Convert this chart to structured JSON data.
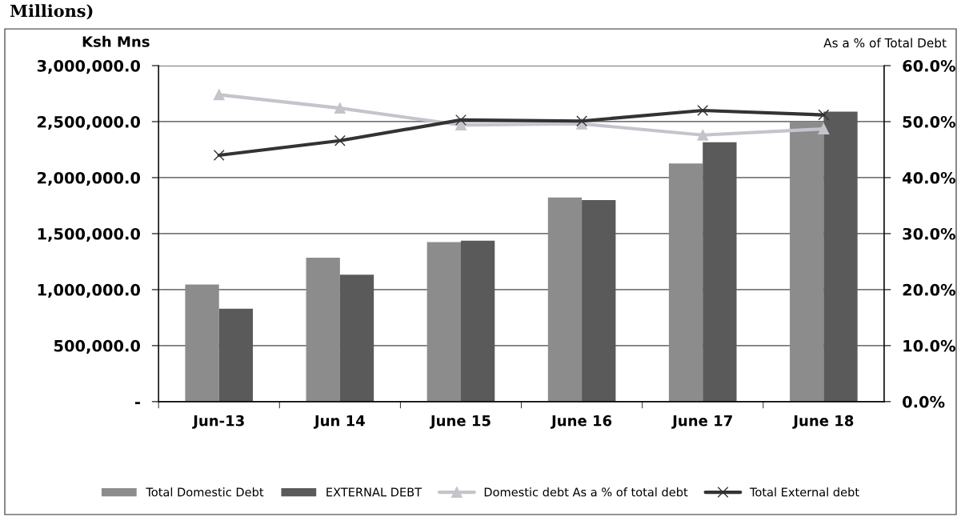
{
  "chart_data": {
    "type": "bar",
    "title": "Millions)",
    "ylabel": "Ksh Mns",
    "y2label": "As a % of Total Debt",
    "categories": [
      "Jun-13",
      "Jun 14",
      "June 15",
      "June 16",
      "June 17",
      "June 18"
    ],
    "series": [
      {
        "name": "Total Domestic Debt",
        "color": "#8c8c8c",
        "values": [
          1045000,
          1285000,
          1424000,
          1822000,
          2127000,
          2500000
        ]
      },
      {
        "name": "EXTERNAL DEBT",
        "color": "#5a5a5a",
        "values": [
          830000,
          1133000,
          1437000,
          1800000,
          2316000,
          2590000
        ]
      },
      {
        "name": "Domestic debt As a % of total debt",
        "type": "line",
        "axis": "y2",
        "marker": "triangle",
        "color": "#c4c4cc",
        "values": [
          54.8,
          52.4,
          49.4,
          49.6,
          47.6,
          48.7
        ]
      },
      {
        "name": "Total External debt",
        "type": "line",
        "axis": "y2",
        "marker": "cross",
        "color": "#333333",
        "values": [
          44.0,
          46.6,
          50.3,
          50.1,
          52.0,
          51.2
        ]
      }
    ],
    "ylim": [
      0,
      3000000
    ],
    "yticks": [
      {
        "value": 0,
        "label": "-"
      },
      {
        "value": 500000,
        "label": "500,000.0"
      },
      {
        "value": 1000000,
        "label": "1,000,000.0"
      },
      {
        "value": 1500000,
        "label": "1,500,000.0"
      },
      {
        "value": 2000000,
        "label": "2,000,000.0"
      },
      {
        "value": 2500000,
        "label": "2,500,000.0"
      },
      {
        "value": 3000000,
        "label": "3,000,000.0"
      }
    ],
    "y2lim": [
      0,
      60
    ],
    "y2ticks": [
      {
        "value": 0,
        "label": "0.0%"
      },
      {
        "value": 10,
        "label": "10.0%"
      },
      {
        "value": 20,
        "label": "20.0%"
      },
      {
        "value": 30,
        "label": "30.0%"
      },
      {
        "value": 40,
        "label": "40.0%"
      },
      {
        "value": 50,
        "label": "50.0%"
      },
      {
        "value": 60,
        "label": "60.0%"
      }
    ],
    "grid": "y",
    "legend": "bottom"
  }
}
